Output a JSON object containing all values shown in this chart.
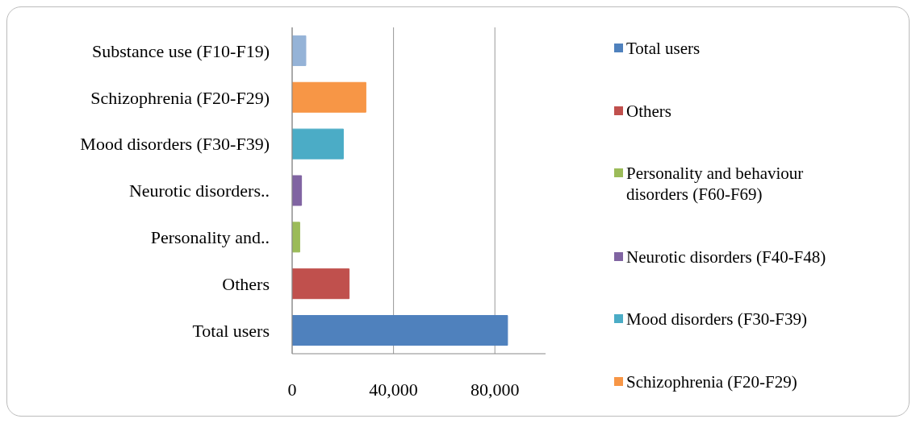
{
  "chart_data": {
    "type": "bar",
    "orientation": "horizontal",
    "stacked": true,
    "categories": [
      "Substance use  (F10-F19)",
      "Schizophrenia (F20-F29)",
      "Mood disorders (F30-F39)",
      "Neurotic disorders..",
      "Personality and..",
      "Others",
      "Total users"
    ],
    "series": [
      {
        "name": "Total users",
        "color": "#4f81bd",
        "values": [
          null,
          null,
          null,
          null,
          null,
          null,
          85000
        ]
      },
      {
        "name": "Others",
        "color": "#c0504d",
        "values": [
          null,
          null,
          null,
          null,
          null,
          22500,
          null
        ]
      },
      {
        "name": "Personality and behaviour disorders (F60-F69)",
        "color": "#9bbb59",
        "values": [
          null,
          null,
          null,
          null,
          3000,
          null,
          null
        ]
      },
      {
        "name": "Neurotic disorders (F40-F48)",
        "color": "#8064a2",
        "values": [
          null,
          null,
          null,
          3700,
          null,
          null,
          null
        ]
      },
      {
        "name": "Mood disorders (F30-F39)",
        "color": "#4bacc6",
        "values": [
          null,
          null,
          20200,
          null,
          null,
          null,
          null
        ]
      },
      {
        "name": "Schizophrenia (F20-F29)",
        "color": "#f79646",
        "values": [
          null,
          29100,
          null,
          null,
          null,
          null,
          null
        ]
      },
      {
        "color": "#95b3d7",
        "values": [
          5400,
          null,
          null,
          null,
          null,
          null,
          null
        ]
      }
    ],
    "xlim": [
      0,
      100000
    ],
    "xticks": [
      0,
      {
        "value": 40000,
        "label": "40,000"
      },
      {
        "value": 80000,
        "label": "80,000"
      }
    ],
    "grid": "x",
    "legend": "right"
  }
}
